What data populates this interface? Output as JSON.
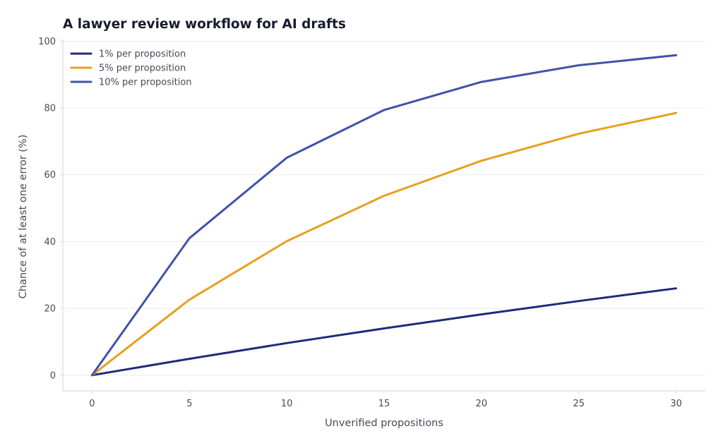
{
  "chart_data": {
    "type": "line",
    "title": "A lawyer review workflow for AI drafts",
    "xlabel": "Unverified propositions",
    "ylabel": "Chance of at least one error (%)",
    "x": [
      0,
      5,
      10,
      15,
      20,
      25,
      30
    ],
    "xlim": [
      -1.5,
      31.5
    ],
    "ylim": [
      -4.7,
      100.5
    ],
    "xticks": [
      0,
      5,
      10,
      15,
      20,
      25,
      30
    ],
    "yticks": [
      0,
      20,
      40,
      60,
      80,
      100
    ],
    "grid": "horizontal",
    "legend_position": "top-left",
    "series": [
      {
        "name": "1% per proposition",
        "color": "#1f2a7a",
        "values": [
          0,
          4.9,
          9.6,
          14.0,
          18.2,
          22.2,
          26.0
        ]
      },
      {
        "name": "5% per proposition",
        "color": "#e6a020",
        "values": [
          0,
          22.6,
          40.1,
          53.7,
          64.2,
          72.3,
          78.5
        ]
      },
      {
        "name": "10% per proposition",
        "color": "#4152a8",
        "values": [
          0,
          41.0,
          65.1,
          79.4,
          87.8,
          92.8,
          95.8
        ]
      }
    ]
  }
}
